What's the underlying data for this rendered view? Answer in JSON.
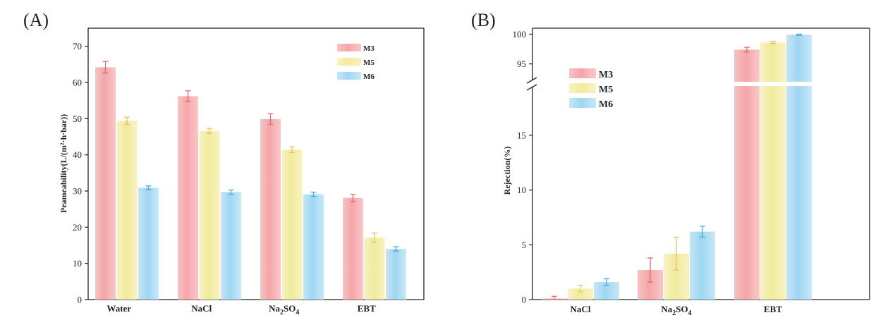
{
  "colors": {
    "M3": "#f4a6a8",
    "M5": "#f2ec9e",
    "M6": "#9fd6f2",
    "M3_err": "#e06d72",
    "M5_err": "#e7c36a",
    "M6_err": "#4aa8d8"
  },
  "chart_data": [
    {
      "panel": "(A)",
      "type": "bar",
      "categories": [
        "Water",
        "NaCl",
        "Na2SO4",
        "EBT"
      ],
      "category_labels": [
        {
          "main": "Water",
          "sub": "",
          "tail": ""
        },
        {
          "main": "NaCl",
          "sub": "",
          "tail": ""
        },
        {
          "main": "Na",
          "sub": "2",
          "tail": "SO",
          "sub2": "4"
        },
        {
          "main": "EBT",
          "sub": "",
          "tail": ""
        }
      ],
      "ylabel": "Peameability(L/(m²·h·bar))",
      "ylim": [
        0,
        75
      ],
      "yticks": [
        0,
        10,
        20,
        30,
        40,
        50,
        60,
        70
      ],
      "legend_position": "top-right",
      "series": [
        {
          "name": "M3",
          "values": [
            64.2,
            56.2,
            49.9,
            28.1
          ],
          "errors": [
            1.6,
            1.5,
            1.5,
            1.0
          ]
        },
        {
          "name": "M5",
          "values": [
            49.4,
            46.6,
            41.4,
            17.1
          ],
          "errors": [
            1.0,
            0.7,
            0.8,
            1.3
          ]
        },
        {
          "name": "M6",
          "values": [
            30.9,
            29.7,
            29.1,
            14.0
          ],
          "errors": [
            0.5,
            0.6,
            0.6,
            0.6
          ]
        }
      ]
    },
    {
      "panel": "(B)",
      "type": "bar",
      "categories": [
        "NaCl",
        "Na2SO4",
        "EBT"
      ],
      "category_labels": [
        {
          "main": "NaCl",
          "sub": "",
          "tail": ""
        },
        {
          "main": "Na",
          "sub": "2",
          "tail": "SO",
          "sub2": "4"
        },
        {
          "main": "EBT",
          "sub": "",
          "tail": ""
        }
      ],
      "ylabel": "Rejection(%)",
      "axis_break": {
        "lower": [
          0,
          19.5
        ],
        "upper": [
          92,
          101
        ]
      },
      "yticks_lower": [
        0,
        5,
        10,
        15
      ],
      "yticks_upper": [
        95,
        100
      ],
      "legend_position": "top-left",
      "series": [
        {
          "name": "M3",
          "values": [
            0.1,
            2.7,
            97.4
          ],
          "errors": [
            0.2,
            1.1,
            0.4
          ]
        },
        {
          "name": "M5",
          "values": [
            1.0,
            4.2,
            98.6
          ],
          "errors": [
            0.3,
            1.5,
            0.2
          ]
        },
        {
          "name": "M6",
          "values": [
            1.6,
            6.2,
            99.9
          ],
          "errors": [
            0.3,
            0.5,
            0.1
          ]
        }
      ]
    }
  ]
}
